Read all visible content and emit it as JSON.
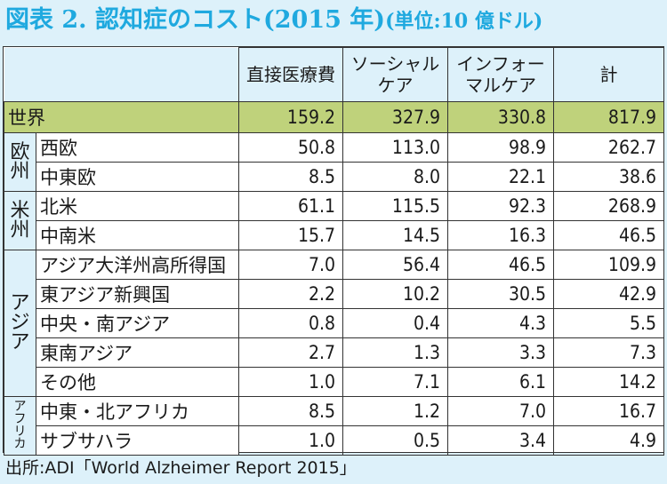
{
  "title": {
    "main": "図表 2. 認知症のコスト(2015 年)",
    "unit": "(単位:10 億ドル)"
  },
  "header": {
    "col_medical": "直接医療費",
    "col_social": "ソーシャルケア",
    "col_informal": "インフォーマルケア",
    "col_total": "計"
  },
  "world": {
    "label": "世界",
    "medical": "159.2",
    "social": "327.9",
    "informal": "330.8",
    "total": "817.9"
  },
  "regions": {
    "europe": "欧州",
    "americas": "米州",
    "asia": "アジア",
    "africa": "アフリカ"
  },
  "rows": [
    {
      "label": "西欧",
      "medical": "50.8",
      "social": "113.0",
      "informal": "98.9",
      "total": "262.7"
    },
    {
      "label": "中東欧",
      "medical": "8.5",
      "social": "8.0",
      "informal": "22.1",
      "total": "38.6"
    },
    {
      "label": "北米",
      "medical": "61.1",
      "social": "115.5",
      "informal": "92.3",
      "total": "268.9"
    },
    {
      "label": "中南米",
      "medical": "15.7",
      "social": "14.5",
      "informal": "16.3",
      "total": "46.5"
    },
    {
      "label": "アジア大洋州高所得国",
      "medical": "7.0",
      "social": "56.4",
      "informal": "46.5",
      "total": "109.9"
    },
    {
      "label": "東アジア新興国",
      "medical": "2.2",
      "social": "10.2",
      "informal": "30.5",
      "total": "42.9"
    },
    {
      "label": "中央・南アジア",
      "medical": "0.8",
      "social": "0.4",
      "informal": "4.3",
      "total": "5.5"
    },
    {
      "label": "東南アジア",
      "medical": "2.7",
      "social": "1.3",
      "informal": "3.3",
      "total": "7.3"
    },
    {
      "label": "その他",
      "medical": "1.0",
      "social": "7.1",
      "informal": "6.1",
      "total": "14.2"
    },
    {
      "label": "中東・北アフリカ",
      "medical": "8.5",
      "social": "1.2",
      "informal": "7.0",
      "total": "16.7"
    },
    {
      "label": "サブサハラ",
      "medical": "1.0",
      "social": "0.5",
      "informal": "3.4",
      "total": "4.9"
    }
  ],
  "source": "出所:ADI「World Alzheimer Report 2015」",
  "colors": {
    "title": "#1fa9df",
    "header_bg": "#ddf1fa",
    "world_row_bg": "#bfd27b"
  }
}
